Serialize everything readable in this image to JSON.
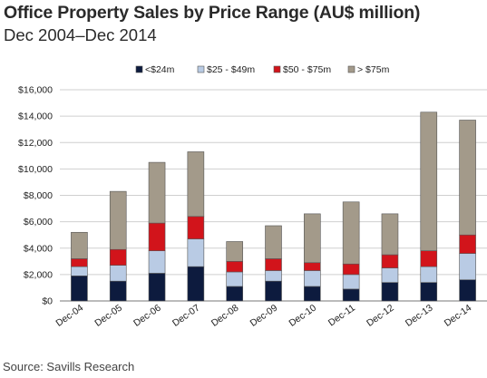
{
  "title": "Office Property Sales by Price Range (AU$ million)",
  "subtitle": "Dec 2004–Dec 2014",
  "source": "Source: Savills Research",
  "chart_data": {
    "type": "bar",
    "stacked": true,
    "categories": [
      "Dec-04",
      "Dec-05",
      "Dec-06",
      "Dec-07",
      "Dec-08",
      "Dec-09",
      "Dec-10",
      "Dec-11",
      "Dec-12",
      "Dec-13",
      "Dec-14"
    ],
    "series": [
      {
        "name": "<$24m",
        "color": "#0d1b3e",
        "values": [
          1900,
          1500,
          2100,
          2600,
          1100,
          1500,
          1100,
          900,
          1400,
          1400,
          1600
        ]
      },
      {
        "name": "$25 - $49m",
        "color": "#b9cbe4",
        "values": [
          700,
          1200,
          1700,
          2100,
          1100,
          800,
          1200,
          1100,
          1100,
          1200,
          2000
        ]
      },
      {
        "name": "$50 - $75m",
        "color": "#d2141b",
        "values": [
          600,
          1200,
          2100,
          1700,
          800,
          900,
          600,
          800,
          1000,
          1200,
          1400
        ]
      },
      {
        "name": "> $75m",
        "color": "#a39a8a",
        "values": [
          2000,
          4400,
          4600,
          4900,
          1500,
          2500,
          3700,
          4700,
          3100,
          10500,
          8700
        ]
      }
    ],
    "ylim": [
      0,
      16000
    ],
    "yticks": [
      "$0",
      "$2,000",
      "$4,000",
      "$6,000",
      "$8,000",
      "$10,000",
      "$12,000",
      "$14,000",
      "$16,000"
    ],
    "grid": true,
    "legend": "top"
  }
}
